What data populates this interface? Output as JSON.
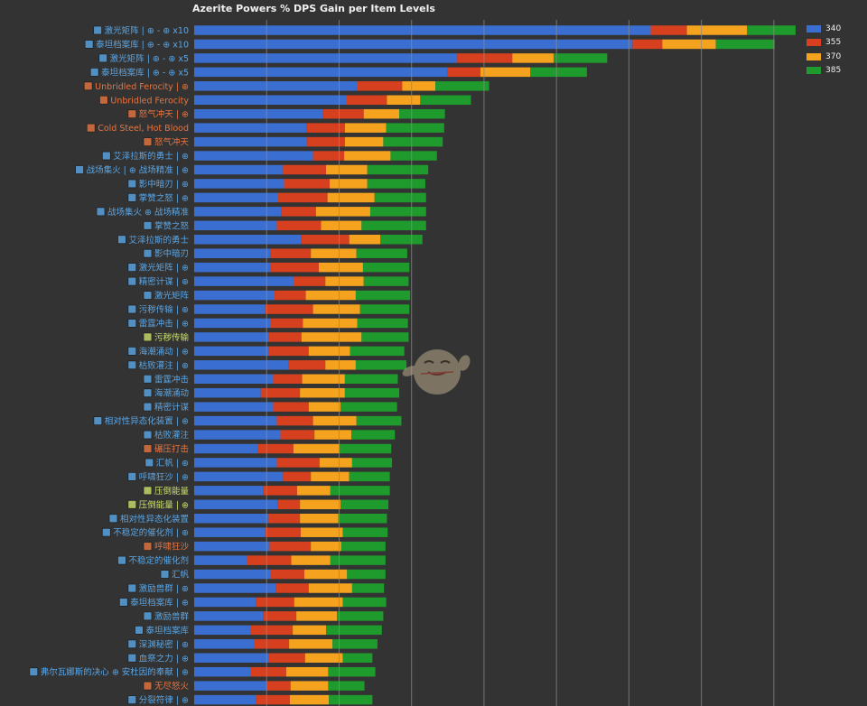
{
  "colors": {
    "background": "#333333",
    "grid": "#8a8a8a",
    "label_blue": "#5aa6e6",
    "label_orange": "#e8743f",
    "label_green": "#c9e06a",
    "series": [
      "#3a6fd1",
      "#d6401f",
      "#f5a21e",
      "#1f9a2c"
    ]
  },
  "chart_data": {
    "type": "bar",
    "orientation": "horizontal",
    "stacked": true,
    "title": "Azerite Powers % DPS Gain per Item Levels",
    "legend_position": "top-right",
    "grid": true,
    "xlim": [
      0,
      8.6
    ],
    "x_gridlines": [
      1,
      2,
      3,
      4,
      5,
      6,
      7,
      8
    ],
    "series_names": [
      "340",
      "355",
      "370",
      "385"
    ],
    "categories": [
      {
        "label": "激光矩阵 | ⊕ - ⊕ x10",
        "icon": "laser-matrix-icon",
        "color": "blue",
        "values": [
          6.3,
          0.5,
          0.83,
          0.67
        ]
      },
      {
        "label": "泰坦档案库 | ⊕ - ⊕ x10",
        "icon": "titan-archive-icon",
        "color": "blue",
        "values": [
          6.05,
          0.41,
          0.74,
          0.81
        ]
      },
      {
        "label": "激光矩阵 | ⊕ - ⊕ x5",
        "icon": "laser-matrix-icon",
        "color": "blue",
        "values": [
          3.63,
          0.76,
          0.57,
          0.74
        ]
      },
      {
        "label": "泰坦档案库 | ⊕ - ⊕ x5",
        "icon": "titan-archive-icon",
        "color": "blue",
        "values": [
          3.5,
          0.45,
          0.69,
          0.78
        ]
      },
      {
        "label": "Unbridled Ferocity | ⊕",
        "icon": "unbridled-ferocity-icon",
        "color": "orange",
        "values": [
          2.25,
          0.62,
          0.46,
          0.74
        ]
      },
      {
        "label": "Unbridled Ferocity",
        "icon": "unbridled-ferocity-icon",
        "color": "orange",
        "values": [
          2.1,
          0.56,
          0.46,
          0.7
        ]
      },
      {
        "label": "怒气冲天 | ⊕",
        "icon": "rage-surge-icon",
        "color": "orange",
        "values": [
          1.78,
          0.56,
          0.49,
          0.63
        ]
      },
      {
        "label": "Cold Steel, Hot Blood",
        "icon": "cold-steel-icon",
        "color": "orange",
        "values": [
          1.55,
          0.53,
          0.57,
          0.8
        ]
      },
      {
        "label": "怒气冲天",
        "icon": "rage-surge-icon",
        "color": "orange",
        "values": [
          1.56,
          0.52,
          0.53,
          0.82
        ]
      },
      {
        "label": "艾泽拉斯的勇士 | ⊕",
        "icon": "azeroth-champion-icon",
        "color": "blue",
        "values": [
          1.64,
          0.43,
          0.64,
          0.64
        ]
      },
      {
        "label": "战场集火 | ⊕ 战场精准 | ⊕",
        "icon": "battlefield-focus-icon",
        "color": "blue",
        "values": [
          1.22,
          0.6,
          0.57,
          0.84
        ]
      },
      {
        "label": "影中暗刃 | ⊕",
        "icon": "shadow-blade-icon",
        "color": "blue",
        "values": [
          1.24,
          0.63,
          0.52,
          0.8
        ]
      },
      {
        "label": "掌赞之怒 | ⊕",
        "icon": "wrath-icon",
        "color": "blue",
        "values": [
          1.16,
          0.68,
          0.65,
          0.71
        ]
      },
      {
        "label": "战场集火 ⊕ 战场精准",
        "icon": "battlefield-focus-icon",
        "color": "blue",
        "values": [
          1.2,
          0.48,
          0.75,
          0.77
        ]
      },
      {
        "label": "掌赞之怒",
        "icon": "wrath-icon",
        "color": "blue",
        "values": [
          1.14,
          0.61,
          0.56,
          0.89
        ]
      },
      {
        "label": "艾泽拉斯的勇士",
        "icon": "azeroth-champion-icon",
        "color": "blue",
        "values": [
          1.48,
          0.66,
          0.43,
          0.58
        ]
      },
      {
        "label": "影中暗刃",
        "icon": "shadow-blade-icon",
        "color": "blue",
        "values": [
          1.05,
          0.56,
          0.63,
          0.7
        ]
      },
      {
        "label": "激光矩阵 | ⊕",
        "icon": "laser-matrix-icon",
        "color": "blue",
        "values": [
          1.05,
          0.67,
          0.61,
          0.64
        ]
      },
      {
        "label": "精密计谋 | ⊕",
        "icon": "precision-scheme-icon",
        "color": "blue",
        "values": [
          1.37,
          0.44,
          0.53,
          0.62
        ]
      },
      {
        "label": "激光矩阵",
        "icon": "laser-matrix-icon",
        "color": "blue",
        "values": [
          1.11,
          0.43,
          0.69,
          0.75
        ]
      },
      {
        "label": "污秽传输 | ⊕",
        "icon": "filthy-transfusion-icon",
        "color": "blue",
        "values": [
          0.98,
          0.66,
          0.65,
          0.68
        ]
      },
      {
        "label": "雷霆冲击 | ⊕",
        "icon": "thunder-strike-icon",
        "color": "blue",
        "values": [
          1.06,
          0.44,
          0.75,
          0.7
        ]
      },
      {
        "label": "污秽传输",
        "icon": "filthy-transfusion-icon",
        "color": "green",
        "values": [
          1.03,
          0.45,
          0.83,
          0.65
        ]
      },
      {
        "label": "海潮涌动 | ⊕",
        "icon": "tidal-surge-icon",
        "color": "blue",
        "values": [
          1.03,
          0.55,
          0.57,
          0.75
        ]
      },
      {
        "label": "枯败灌注 | ⊕",
        "icon": "blightborne-icon",
        "color": "blue",
        "values": [
          1.3,
          0.51,
          0.42,
          0.7
        ]
      },
      {
        "label": "雷霆冲击",
        "icon": "thunder-strike-icon",
        "color": "blue",
        "values": [
          1.09,
          0.4,
          0.59,
          0.73
        ]
      },
      {
        "label": "海潮涌动",
        "icon": "tidal-surge-icon",
        "color": "blue",
        "values": [
          0.92,
          0.54,
          0.62,
          0.75
        ]
      },
      {
        "label": "精密计谋",
        "icon": "precision-scheme-icon",
        "color": "blue",
        "values": [
          1.09,
          0.49,
          0.44,
          0.78
        ]
      },
      {
        "label": "相对性异态化装置 | ⊕",
        "icon": "relational-normalization-icon",
        "color": "blue",
        "values": [
          1.14,
          0.5,
          0.6,
          0.62
        ]
      },
      {
        "label": "枯败灌注",
        "icon": "blightborne-icon",
        "color": "blue",
        "values": [
          1.19,
          0.47,
          0.51,
          0.6
        ]
      },
      {
        "label": "碾压打击",
        "icon": "crushing-assault-icon",
        "color": "orange",
        "values": [
          0.88,
          0.49,
          0.64,
          0.71
        ]
      },
      {
        "label": "汇帆 | ⊕",
        "icon": "gathering-storm-icon",
        "color": "blue",
        "values": [
          1.14,
          0.59,
          0.45,
          0.55
        ]
      },
      {
        "label": "呼啸狂沙 | ⊕",
        "icon": "roaring-sands-icon",
        "color": "blue",
        "values": [
          1.22,
          0.39,
          0.53,
          0.56
        ]
      },
      {
        "label": "压倒能量",
        "icon": "overwhelming-power-icon",
        "color": "green",
        "values": [
          0.95,
          0.47,
          0.46,
          0.82
        ]
      },
      {
        "label": "压倒能量 | ⊕",
        "icon": "overwhelming-power-icon",
        "color": "green",
        "values": [
          1.15,
          0.31,
          0.56,
          0.66
        ]
      },
      {
        "label": "相对性异态化装置",
        "icon": "relational-normalization-icon",
        "color": "blue",
        "values": [
          1.02,
          0.44,
          0.53,
          0.67
        ]
      },
      {
        "label": "不稳定的催化剂 | ⊕",
        "icon": "unstable-catalyst-icon",
        "color": "blue",
        "values": [
          0.98,
          0.49,
          0.58,
          0.62
        ]
      },
      {
        "label": "呼啸狂沙",
        "icon": "roaring-sands-icon",
        "color": "orange",
        "values": [
          1.04,
          0.57,
          0.42,
          0.61
        ]
      },
      {
        "label": "不稳定的催化剂",
        "icon": "unstable-catalyst-icon",
        "color": "blue",
        "values": [
          0.73,
          0.61,
          0.54,
          0.76
        ]
      },
      {
        "label": "汇帆",
        "icon": "gathering-storm-icon",
        "color": "blue",
        "values": [
          1.06,
          0.46,
          0.59,
          0.53
        ]
      },
      {
        "label": "激励兽群 | ⊕",
        "icon": "primal-instincts-icon",
        "color": "blue",
        "values": [
          1.13,
          0.45,
          0.6,
          0.44
        ]
      },
      {
        "label": "泰坦档案库 | ⊕",
        "icon": "titan-archive-icon",
        "color": "blue",
        "values": [
          0.85,
          0.53,
          0.67,
          0.6
        ]
      },
      {
        "label": "激励兽群",
        "icon": "primal-instincts-icon",
        "color": "blue",
        "values": [
          0.95,
          0.46,
          0.56,
          0.64
        ]
      },
      {
        "label": "泰坦档案库",
        "icon": "titan-archive-icon",
        "color": "blue",
        "values": [
          0.78,
          0.58,
          0.46,
          0.77
        ]
      },
      {
        "label": "深渊秘密 | ⊕",
        "icon": "secrets-of-the-deep-icon",
        "color": "blue",
        "values": [
          0.83,
          0.48,
          0.6,
          0.62
        ]
      },
      {
        "label": "血祭之力 | ⊕",
        "icon": "blood-rite-icon",
        "color": "blue",
        "values": [
          1.03,
          0.5,
          0.52,
          0.41
        ]
      },
      {
        "label": "弗尔瓦娜斯的决心 ⊕ 安杜因的奉献 | ⊕",
        "icon": "sylvanas-resolve-icon",
        "color": "blue",
        "values": [
          0.78,
          0.49,
          0.58,
          0.65
        ]
      },
      {
        "label": "无尽怒火",
        "icon": "endless-rage-icon",
        "color": "orange",
        "values": [
          1.0,
          0.33,
          0.52,
          0.5
        ]
      },
      {
        "label": "分裂符律 | ⊕",
        "icon": "splintering-spellcraft-icon",
        "color": "blue",
        "values": [
          0.85,
          0.47,
          0.54,
          0.6
        ]
      }
    ]
  }
}
